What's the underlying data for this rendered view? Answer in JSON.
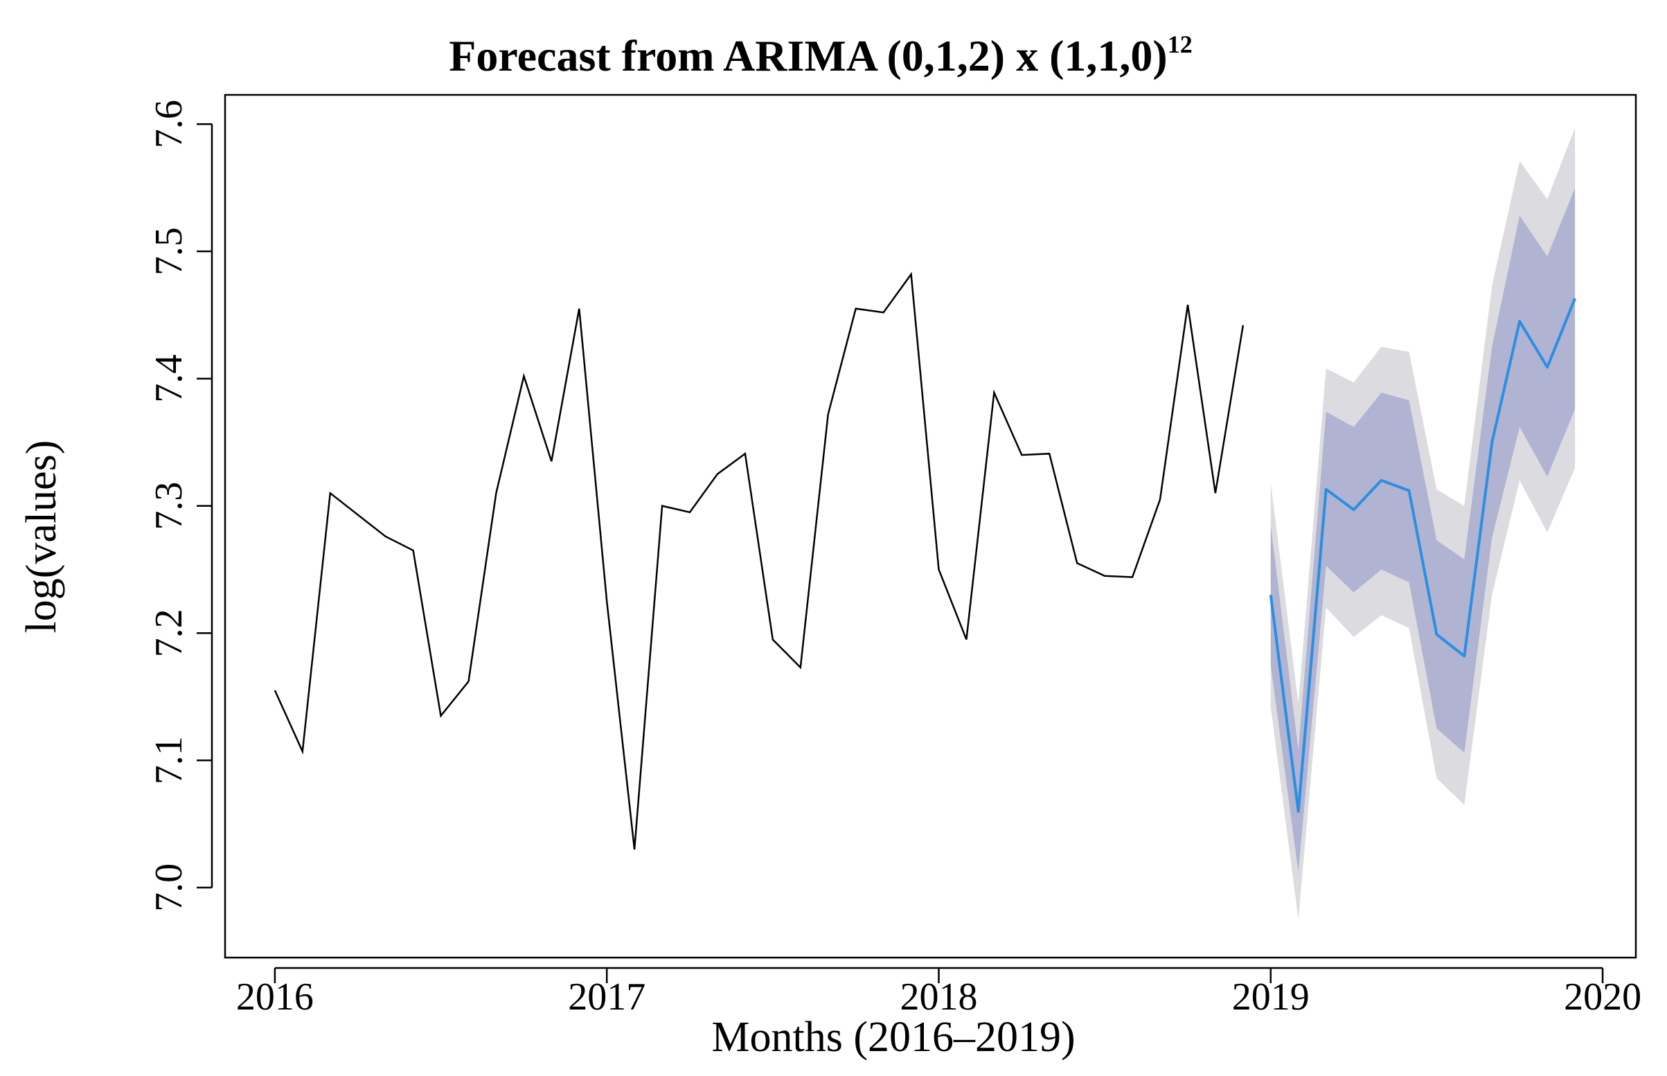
{
  "chart_data": {
    "type": "line",
    "title": "Forecast from ARIMA (0,1,2) x (1,1,0)",
    "title_superscript": "12",
    "xlabel": "Months (2016–2019)",
    "ylabel": "log(values)",
    "xlim": [
      2015.85,
      2020.1
    ],
    "ylim": [
      6.945,
      7.623
    ],
    "x_ticks": [
      2016,
      2017,
      2018,
      2019,
      2020
    ],
    "x_tick_labels": [
      "2016",
      "2017",
      "2018",
      "2019",
      "2020"
    ],
    "y_ticks": [
      7.0,
      7.1,
      7.2,
      7.3,
      7.4,
      7.5,
      7.6
    ],
    "y_tick_labels": [
      "7.0",
      "7.1",
      "7.2",
      "7.3",
      "7.4",
      "7.5",
      "7.6"
    ],
    "grid": false,
    "series": [
      {
        "name": "observed",
        "color": "#000000",
        "x": [
          2016.0,
          2016.0833,
          2016.1667,
          2016.25,
          2016.3333,
          2016.4167,
          2016.5,
          2016.5833,
          2016.6667,
          2016.75,
          2016.8333,
          2016.9167,
          2017.0,
          2017.0833,
          2017.1667,
          2017.25,
          2017.3333,
          2017.4167,
          2017.5,
          2017.5833,
          2017.6667,
          2017.75,
          2017.8333,
          2017.9167,
          2018.0,
          2018.0833,
          2018.1667,
          2018.25,
          2018.3333,
          2018.4167,
          2018.5,
          2018.5833,
          2018.6667,
          2018.75,
          2018.8333,
          2018.9167
        ],
        "values": [
          7.155,
          7.107,
          7.31,
          7.293,
          7.276,
          7.265,
          7.135,
          7.162,
          7.31,
          7.402,
          7.335,
          7.455,
          7.225,
          7.03,
          7.3,
          7.295,
          7.325,
          7.341,
          7.195,
          7.173,
          7.372,
          7.455,
          7.452,
          7.482,
          7.25,
          7.195,
          7.389,
          7.34,
          7.341,
          7.255,
          7.245,
          7.244,
          7.305,
          7.458,
          7.31,
          7.442
        ]
      },
      {
        "name": "forecast",
        "color": "#2b8fe0",
        "x": [
          2019.0,
          2019.0833,
          2019.1667,
          2019.25,
          2019.3333,
          2019.4167,
          2019.5,
          2019.5833,
          2019.6667,
          2019.75,
          2019.8333,
          2019.9167
        ],
        "values": [
          7.23,
          7.06,
          7.313,
          7.297,
          7.32,
          7.312,
          7.199,
          7.182,
          7.35,
          7.445,
          7.409,
          7.463
        ],
        "lo80": [
          7.175,
          7.012,
          7.253,
          7.232,
          7.25,
          7.24,
          7.125,
          7.106,
          7.275,
          7.362,
          7.323,
          7.376
        ],
        "hi80": [
          7.285,
          7.108,
          7.374,
          7.362,
          7.389,
          7.383,
          7.273,
          7.258,
          7.425,
          7.528,
          7.496,
          7.55
        ],
        "lo95": [
          7.142,
          6.975,
          7.22,
          7.197,
          7.214,
          7.204,
          7.086,
          7.065,
          7.23,
          7.32,
          7.279,
          7.33
        ],
        "hi95": [
          7.318,
          7.145,
          7.408,
          7.397,
          7.425,
          7.421,
          7.313,
          7.3,
          7.473,
          7.571,
          7.541,
          7.597
        ]
      }
    ],
    "band_colors": {
      "ci80": "#b0b3d2",
      "ci95": "#dcdce0"
    }
  }
}
